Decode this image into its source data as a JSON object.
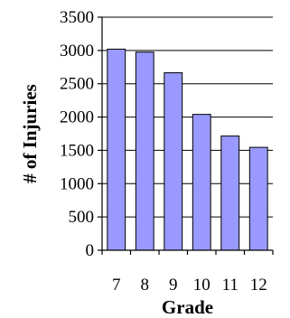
{
  "chart_data": {
    "type": "bar",
    "categories": [
      "7",
      "8",
      "9",
      "10",
      "11",
      "12"
    ],
    "values": [
      3020,
      2975,
      2665,
      2040,
      1715,
      1545
    ],
    "title": "",
    "xlabel": "Grade",
    "ylabel": "# of Injuries",
    "ylim": [
      0,
      3500
    ],
    "yticks": [
      "0",
      "500",
      "1000",
      "1500",
      "2000",
      "2500",
      "3000",
      "3500"
    ],
    "grid": true,
    "bar_color": "#9999FF"
  }
}
